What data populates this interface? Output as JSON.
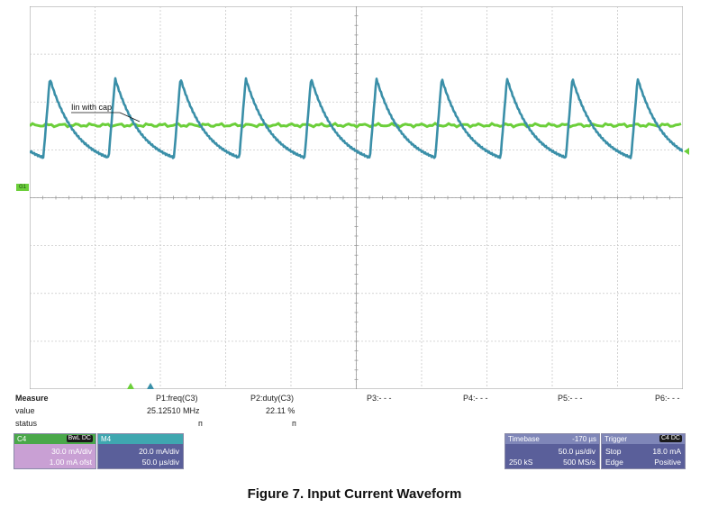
{
  "waveform": {
    "label": "Iin with cap",
    "trace_color_current": "#3a8fa8",
    "trace_color_flat": "#6ccf3a",
    "period_us": 70,
    "duty_fraction": 0.22,
    "cycles_visible": 10
  },
  "measure": {
    "title": "Measure",
    "row_value": "value",
    "row_status": "status",
    "p1": {
      "label": "P1:freq(C3)",
      "value": "25.12510 MHz",
      "status": "ᴨ"
    },
    "p2": {
      "label": "P2:duty(C3)",
      "value": "22.11 %",
      "status": "ᴨ"
    },
    "p3": {
      "label": "P3:- - -"
    },
    "p4": {
      "label": "P4:- - -"
    },
    "p5": {
      "label": "P5:- - -"
    },
    "p6": {
      "label": "P6:- - -"
    }
  },
  "channels": {
    "c4": {
      "name": "C4",
      "badge": "BwL DC",
      "scale": "30.0 mA/div",
      "offset": "1.00 mA ofst",
      "color": "#c9a0d4"
    },
    "m4": {
      "name": "M4",
      "scale": "20.0 mA/div",
      "time": "50.0 µs/div",
      "color": "#5a5f9a"
    }
  },
  "timebase": {
    "title": "Timebase",
    "value": "-170 µs",
    "div": "50.0 µs/div",
    "samples": "250 kS",
    "rate": "500 MS/s"
  },
  "trigger": {
    "title": "Trigger",
    "badge": "C4 DC",
    "mode": "Stop",
    "level": "18.0 mA",
    "type": "Edge",
    "slope": "Positive"
  },
  "markers": {
    "ground_left": "G1"
  },
  "caption": "Figure 7. Input Current Waveform"
}
